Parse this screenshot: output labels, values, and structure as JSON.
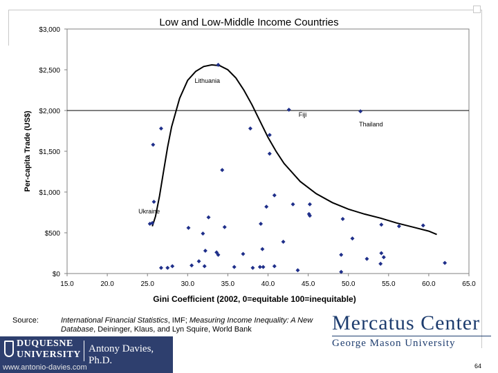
{
  "slide": {
    "title": "Low and Low-Middle Income Countries",
    "source_label": "Source:",
    "source_text_1": "International Financial Statistics",
    "source_text_2": ", IMF; ",
    "source_text_3": "Measuring Income Inequality: A New Database",
    "source_text_4": ", Deininger, Klaus, and Lyn Squire, World Bank",
    "page_number": "64"
  },
  "branding": {
    "mercatus_line1": "Mercatus Center",
    "mercatus_line2": "George Mason University",
    "duquesne_line1": "DUQUESNE",
    "duquesne_line2": "UNIVERSITY",
    "author": "Antony Davies, Ph.D.",
    "url": "www.antonio-davies.com"
  },
  "colors": {
    "marker": "#1f2f8a",
    "curve": "#000000",
    "footer_bg": "#2e3f6e",
    "mercatus": "#1d3c6e"
  },
  "chart_data": {
    "type": "scatter",
    "xlabel": "Gini Coefficient (2002, 0=equitable 100=inequitable)",
    "ylabel": "Per-capita Trade (US$)",
    "xlim": [
      15,
      65
    ],
    "ylim": [
      0,
      3000
    ],
    "x_ticks": [
      "15.0",
      "20.0",
      "25.0",
      "30.0",
      "35.0",
      "40.0",
      "45.0",
      "50.0",
      "55.0",
      "60.0",
      "65.0"
    ],
    "y_ticks": [
      "$0",
      "$500",
      "$1,000",
      "$1,500",
      "$2,000",
      "$2,500",
      "$3,000"
    ],
    "reference_line_y": 2000,
    "points": [
      [
        33.8,
        2560
      ],
      [
        42.6,
        2010
      ],
      [
        51.5,
        1990
      ],
      [
        26.7,
        1780
      ],
      [
        37.8,
        1780
      ],
      [
        40.2,
        1700
      ],
      [
        25.7,
        1580
      ],
      [
        40.2,
        1470
      ],
      [
        34.3,
        1270
      ],
      [
        40.8,
        960
      ],
      [
        25.8,
        880
      ],
      [
        39.8,
        820
      ],
      [
        43.1,
        850
      ],
      [
        45.2,
        850
      ],
      [
        45.1,
        730
      ],
      [
        45.2,
        710
      ],
      [
        32.6,
        690
      ],
      [
        49.3,
        670
      ],
      [
        25.6,
        620
      ],
      [
        25.3,
        610
      ],
      [
        39.1,
        610
      ],
      [
        54.1,
        600
      ],
      [
        56.3,
        580
      ],
      [
        59.3,
        590
      ],
      [
        30.1,
        560
      ],
      [
        34.6,
        570
      ],
      [
        31.9,
        490
      ],
      [
        50.5,
        430
      ],
      [
        41.9,
        390
      ],
      [
        32.2,
        280
      ],
      [
        39.3,
        300
      ],
      [
        33.6,
        260
      ],
      [
        33.8,
        230
      ],
      [
        36.9,
        240
      ],
      [
        49.1,
        230
      ],
      [
        54.1,
        250
      ],
      [
        54.4,
        200
      ],
      [
        52.3,
        180
      ],
      [
        31.4,
        150
      ],
      [
        62.0,
        130
      ],
      [
        30.5,
        100
      ],
      [
        26.7,
        70
      ],
      [
        27.5,
        70
      ],
      [
        28.1,
        90
      ],
      [
        32.1,
        90
      ],
      [
        35.8,
        80
      ],
      [
        38.1,
        70
      ],
      [
        39.0,
        80
      ],
      [
        39.4,
        80
      ],
      [
        40.8,
        90
      ],
      [
        43.7,
        40
      ],
      [
        49.1,
        20
      ],
      [
        54.0,
        120
      ]
    ],
    "annotations": [
      {
        "text": "Lithuania",
        "x": 33.8,
        "y": 2560
      },
      {
        "text": "Fiji",
        "x": 42.6,
        "y": 2010
      },
      {
        "text": "Thailand",
        "x": 51.5,
        "y": 1990
      },
      {
        "text": "Ukraine",
        "x": 25.6,
        "y": 620
      }
    ],
    "curve": [
      [
        25.6,
        580
      ],
      [
        26.0,
        700
      ],
      [
        26.5,
        950
      ],
      [
        27.0,
        1250
      ],
      [
        27.5,
        1550
      ],
      [
        28.0,
        1800
      ],
      [
        29.0,
        2150
      ],
      [
        30.0,
        2370
      ],
      [
        31.0,
        2480
      ],
      [
        32.0,
        2540
      ],
      [
        33.0,
        2560
      ],
      [
        34.0,
        2550
      ],
      [
        35.0,
        2500
      ],
      [
        36.0,
        2400
      ],
      [
        37.0,
        2250
      ],
      [
        38.0,
        2070
      ],
      [
        39.0,
        1870
      ],
      [
        40.0,
        1670
      ],
      [
        41.0,
        1500
      ],
      [
        42.0,
        1350
      ],
      [
        44.0,
        1130
      ],
      [
        46.0,
        980
      ],
      [
        48.0,
        870
      ],
      [
        50.0,
        790
      ],
      [
        52.0,
        730
      ],
      [
        54.0,
        680
      ],
      [
        56.0,
        620
      ],
      [
        58.0,
        570
      ],
      [
        60.0,
        520
      ],
      [
        61.0,
        480
      ]
    ]
  }
}
